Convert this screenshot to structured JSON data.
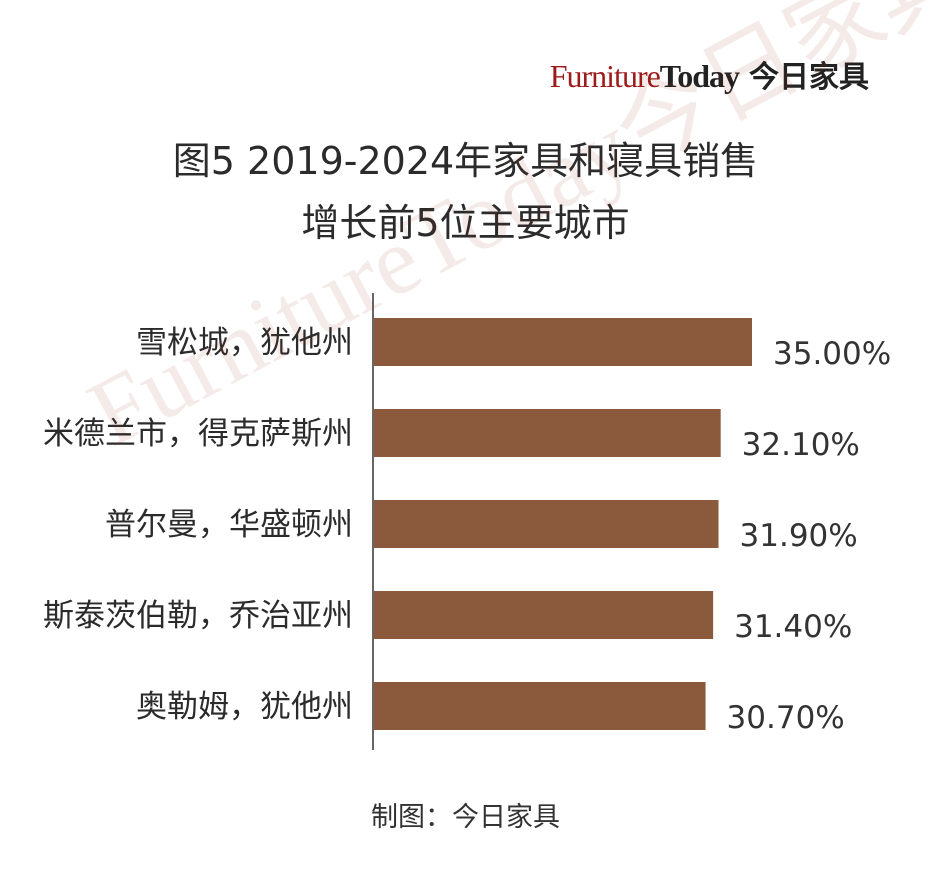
{
  "logo": {
    "part1": "Furniture",
    "part2": "Today",
    "cn": "今日家具"
  },
  "watermark": "FurnitureToday今日家具",
  "chart_data": {
    "type": "bar",
    "orientation": "horizontal",
    "title": "图5  2019-2024年家具和寝具销售",
    "subtitle": "增长前5位主要城市",
    "categories": [
      "雪松城，犹他州",
      "米德兰市，得克萨斯州",
      "普尔曼，华盛顿州",
      "斯泰茨伯勒，乔治亚州",
      "奥勒姆，犹他州"
    ],
    "values": [
      35.0,
      32.1,
      31.9,
      31.4,
      30.7
    ],
    "value_labels": [
      "35.00%",
      "32.10%",
      "31.90%",
      "31.40%",
      "30.70%"
    ],
    "unit": "%",
    "xlim": [
      0,
      35
    ],
    "grid": false,
    "legend": "none",
    "bar_color": "#8b5a3c"
  },
  "source": "制图：今日家具"
}
